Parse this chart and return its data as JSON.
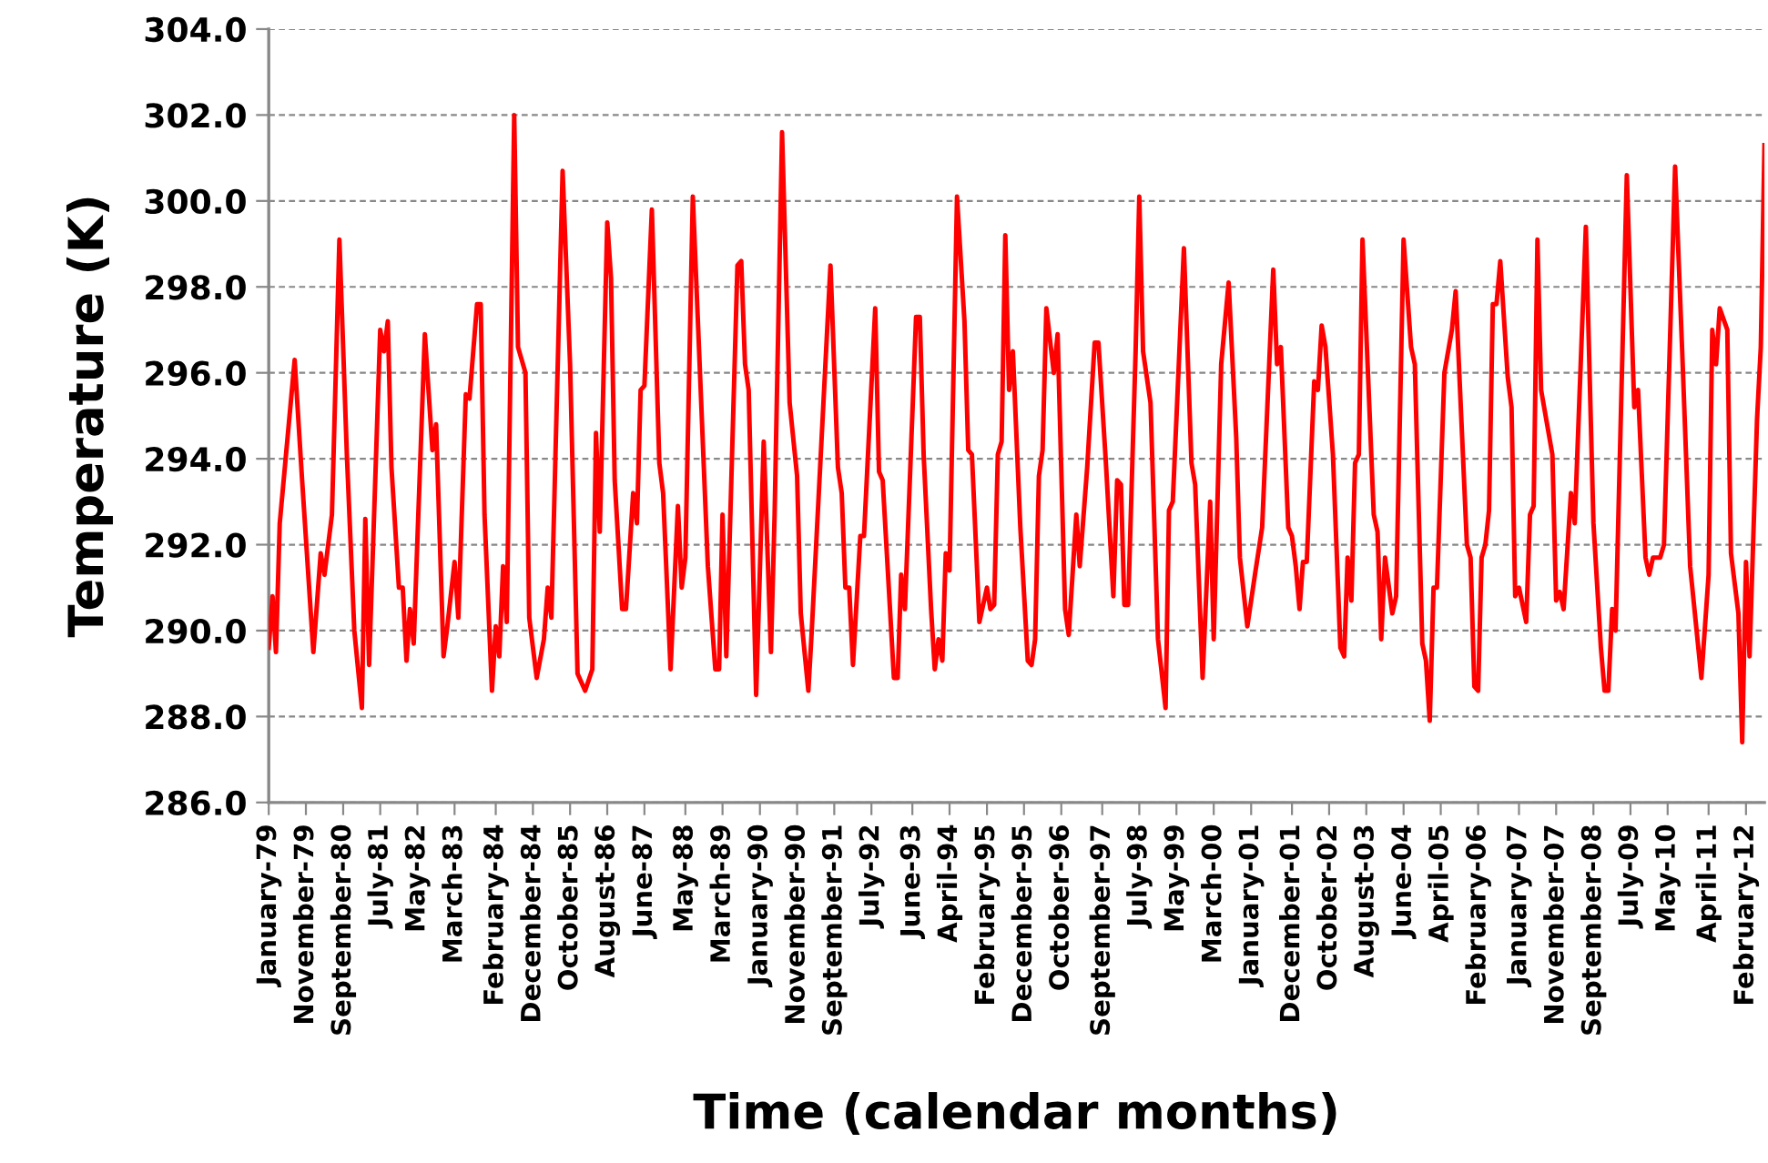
{
  "chart_data": {
    "type": "line",
    "xlabel": "Time (calendar months)",
    "ylabel": "Temperature (K)",
    "x": [
      "1979-01",
      "1979-02",
      "1979-03",
      "1979-04",
      "1979-08",
      "1979-10",
      "1980-01",
      "1980-03",
      "1980-04",
      "1980-06",
      "1980-08",
      "1980-10",
      "1980-12",
      "1981-02",
      "1981-03",
      "1981-04",
      "1981-07",
      "1981-08",
      "1981-09",
      "1981-10",
      "1981-12",
      "1982-01",
      "1982-02",
      "1982-03",
      "1982-04",
      "1982-05",
      "1982-07",
      "1982-09",
      "1982-10",
      "1982-12",
      "1983-01",
      "1983-03",
      "1983-04",
      "1983-06",
      "1983-07",
      "1983-09",
      "1983-10",
      "1983-11",
      "1984-01",
      "1984-02",
      "1984-03",
      "1984-04",
      "1984-05",
      "1984-07",
      "1984-08",
      "1984-10",
      "1984-11",
      "1985-01",
      "1985-03",
      "1985-04",
      "1985-05",
      "1985-08",
      "1985-10",
      "1985-12",
      "1986-02",
      "1986-04",
      "1986-05",
      "1986-06",
      "1986-08",
      "1986-09",
      "1986-10",
      "1986-12",
      "1987-01",
      "1987-03",
      "1987-04",
      "1987-05",
      "1987-06",
      "1987-08",
      "1987-10",
      "1987-11",
      "1988-01",
      "1988-03",
      "1988-04",
      "1988-05",
      "1988-07",
      "1988-11",
      "1989-01",
      "1989-02",
      "1989-03",
      "1989-04",
      "1989-07",
      "1989-08",
      "1989-09",
      "1989-10",
      "1989-11",
      "1989-12",
      "1990-02",
      "1990-04",
      "1990-05",
      "1990-07",
      "1990-09",
      "1990-11",
      "1990-12",
      "1991-02",
      "1991-03",
      "1991-08",
      "1991-10",
      "1991-11",
      "1991-12",
      "1992-01",
      "1992-02",
      "1992-04",
      "1992-05",
      "1992-08",
      "1992-09",
      "1992-10",
      "1993-01",
      "1993-02",
      "1993-03",
      "1993-04",
      "1993-07",
      "1993-08",
      "1993-09",
      "1993-11",
      "1993-12",
      "1994-01",
      "1994-02",
      "1994-03",
      "1994-04",
      "1994-06",
      "1994-08",
      "1994-09",
      "1994-10",
      "1994-12",
      "1995-02",
      "1995-03",
      "1995-04",
      "1995-05",
      "1995-06",
      "1995-07",
      "1995-08",
      "1995-09",
      "1995-11",
      "1996-01",
      "1996-02",
      "1996-03",
      "1996-04",
      "1996-05",
      "1996-06",
      "1996-08",
      "1996-09",
      "1996-11",
      "1996-12",
      "1997-02",
      "1997-03",
      "1997-05",
      "1997-07",
      "1997-08",
      "1997-10",
      "1997-12",
      "1998-01",
      "1998-02",
      "1998-03",
      "1998-04",
      "1998-06",
      "1998-07",
      "1998-08",
      "1998-10",
      "1998-12",
      "1999-02",
      "1999-03",
      "1999-04",
      "1999-07",
      "1999-09",
      "1999-10",
      "1999-12",
      "2000-02",
      "2000-03",
      "2000-05",
      "2000-07",
      "2000-09",
      "2000-10",
      "2000-12",
      "2001-02",
      "2001-04",
      "2001-07",
      "2001-08",
      "2001-09",
      "2001-11",
      "2001-12",
      "2002-01",
      "2002-02",
      "2002-03",
      "2002-04",
      "2002-06",
      "2002-07",
      "2002-08",
      "2002-09",
      "2002-11",
      "2003-01",
      "2003-02",
      "2003-03",
      "2003-04",
      "2003-05",
      "2003-06",
      "2003-07",
      "2003-10",
      "2003-11",
      "2003-12",
      "2004-01",
      "2004-03",
      "2004-04",
      "2004-06",
      "2004-08",
      "2004-09",
      "2004-11",
      "2004-12",
      "2005-01",
      "2005-02",
      "2005-03",
      "2005-05",
      "2005-07",
      "2005-08",
      "2005-11",
      "2005-12",
      "2006-01",
      "2006-02",
      "2006-03",
      "2006-04",
      "2006-05",
      "2006-06",
      "2006-07",
      "2006-08",
      "2006-10",
      "2006-11",
      "2006-12",
      "2007-01",
      "2007-03",
      "2007-04",
      "2007-05",
      "2007-06",
      "2007-07",
      "2007-10",
      "2007-11",
      "2007-12",
      "2008-01",
      "2008-03",
      "2008-04",
      "2008-07",
      "2008-09",
      "2008-11",
      "2008-12",
      "2009-01",
      "2009-02",
      "2009-03",
      "2009-06",
      "2009-08",
      "2009-09",
      "2009-11",
      "2009-12",
      "2010-01",
      "2010-03",
      "2010-04",
      "2010-07",
      "2010-09",
      "2010-11",
      "2011-02",
      "2011-04",
      "2011-05",
      "2011-06",
      "2011-07",
      "2011-09",
      "2011-10",
      "2011-12",
      "2012-01",
      "2012-02",
      "2012-03",
      "2012-05",
      "2012-06",
      "2012-07"
    ],
    "series": [
      {
        "color": "#ff0000",
        "values": [
          289.6,
          290.8,
          289.5,
          292.5,
          296.3,
          293.5,
          289.5,
          291.8,
          291.3,
          292.7,
          299.1,
          294.1,
          290.0,
          288.2,
          292.6,
          289.2,
          297.0,
          296.5,
          297.2,
          293.8,
          291.0,
          291.0,
          289.3,
          290.5,
          289.7,
          292.1,
          296.9,
          294.2,
          294.8,
          289.4,
          290.1,
          291.6,
          290.3,
          295.5,
          295.4,
          297.6,
          297.6,
          292.7,
          288.6,
          290.1,
          289.4,
          291.5,
          290.2,
          302.0,
          296.6,
          296.0,
          290.3,
          288.9,
          289.8,
          291.0,
          290.3,
          300.7,
          296.2,
          289.0,
          288.6,
          289.1,
          294.6,
          292.3,
          299.5,
          298.2,
          293.5,
          290.5,
          290.5,
          293.2,
          292.5,
          295.6,
          295.7,
          299.8,
          293.9,
          293.2,
          289.1,
          292.9,
          291.0,
          291.7,
          300.1,
          291.5,
          289.1,
          289.1,
          292.7,
          289.4,
          298.5,
          298.6,
          296.2,
          295.6,
          292.0,
          288.5,
          294.4,
          289.5,
          292.7,
          301.6,
          295.3,
          293.6,
          290.4,
          288.6,
          290.0,
          298.5,
          293.8,
          293.2,
          291.0,
          291.0,
          289.2,
          292.2,
          292.2,
          297.5,
          293.7,
          293.5,
          288.9,
          288.9,
          291.3,
          290.5,
          297.3,
          297.3,
          294.1,
          290.5,
          289.1,
          289.8,
          289.3,
          291.8,
          291.4,
          300.1,
          297.2,
          294.2,
          294.1,
          290.2,
          291.0,
          290.5,
          290.6,
          294.1,
          294.4,
          299.2,
          295.6,
          296.5,
          292.4,
          289.3,
          289.2,
          289.8,
          293.6,
          294.2,
          297.5,
          296.0,
          296.9,
          290.5,
          289.9,
          292.7,
          291.5,
          293.8,
          296.7,
          296.7,
          293.9,
          290.8,
          293.5,
          293.4,
          290.6,
          290.6,
          296.5,
          300.1,
          296.5,
          295.3,
          289.8,
          288.2,
          292.8,
          293.0,
          298.9,
          293.9,
          293.4,
          288.9,
          293.0,
          289.8,
          296.2,
          298.1,
          294.5,
          291.7,
          290.1,
          291.3,
          292.4,
          298.4,
          296.2,
          296.6,
          292.4,
          292.2,
          291.5,
          290.5,
          291.6,
          291.6,
          295.8,
          295.6,
          297.1,
          296.6,
          294.1,
          289.6,
          289.4,
          291.7,
          290.7,
          293.9,
          294.1,
          299.1,
          292.7,
          292.3,
          289.8,
          291.7,
          290.4,
          290.8,
          299.1,
          296.6,
          296.2,
          289.7,
          289.3,
          287.9,
          291.0,
          291.0,
          296.0,
          297.0,
          297.9,
          292.0,
          291.7,
          288.7,
          288.6,
          291.7,
          292.0,
          292.8,
          297.6,
          297.6,
          298.6,
          295.9,
          295.2,
          290.8,
          291.0,
          290.2,
          292.7,
          292.9,
          299.1,
          295.6,
          294.1,
          290.7,
          290.9,
          290.5,
          293.2,
          292.5,
          299.4,
          292.5,
          289.6,
          288.6,
          288.6,
          290.5,
          290.0,
          300.6,
          295.2,
          295.6,
          291.7,
          291.3,
          291.7,
          291.7,
          292.0,
          300.8,
          296.2,
          291.5,
          288.9,
          291.3,
          297.0,
          296.2,
          297.5,
          297.0,
          291.8,
          290.4,
          287.4,
          291.6,
          289.4,
          294.9,
          296.6,
          301.3
        ]
      }
    ],
    "xlim": [
      "1979-01",
      "2012-07"
    ],
    "xticks": [
      {
        "value": "1979-01",
        "label": "January-79"
      },
      {
        "value": "1979-11",
        "label": "November-79"
      },
      {
        "value": "1980-09",
        "label": "September-80"
      },
      {
        "value": "1981-07",
        "label": "July-81"
      },
      {
        "value": "1982-05",
        "label": "May-82"
      },
      {
        "value": "1983-03",
        "label": "March-83"
      },
      {
        "value": "1984-02",
        "label": "February-84"
      },
      {
        "value": "1984-12",
        "label": "December-84"
      },
      {
        "value": "1985-10",
        "label": "October-85"
      },
      {
        "value": "1986-08",
        "label": "August-86"
      },
      {
        "value": "1987-06",
        "label": "June-87"
      },
      {
        "value": "1988-05",
        "label": "May-88"
      },
      {
        "value": "1989-03",
        "label": "March-89"
      },
      {
        "value": "1990-01",
        "label": "January-90"
      },
      {
        "value": "1990-11",
        "label": "November-90"
      },
      {
        "value": "1991-09",
        "label": "September-91"
      },
      {
        "value": "1992-07",
        "label": "July-92"
      },
      {
        "value": "1993-06",
        "label": "June-93"
      },
      {
        "value": "1994-04",
        "label": "April-94"
      },
      {
        "value": "1995-02",
        "label": "February-95"
      },
      {
        "value": "1995-12",
        "label": "December-95"
      },
      {
        "value": "1996-10",
        "label": "October-96"
      },
      {
        "value": "1997-09",
        "label": "September-97"
      },
      {
        "value": "1998-07",
        "label": "July-98"
      },
      {
        "value": "1999-05",
        "label": "May-99"
      },
      {
        "value": "2000-03",
        "label": "March-00"
      },
      {
        "value": "2001-01",
        "label": "January-01"
      },
      {
        "value": "2001-12",
        "label": "December-01"
      },
      {
        "value": "2002-10",
        "label": "October-02"
      },
      {
        "value": "2003-08",
        "label": "August-03"
      },
      {
        "value": "2004-06",
        "label": "June-04"
      },
      {
        "value": "2005-04",
        "label": "April-05"
      },
      {
        "value": "2006-02",
        "label": "February-06"
      },
      {
        "value": "2007-01",
        "label": "January-07"
      },
      {
        "value": "2007-11",
        "label": "November-07"
      },
      {
        "value": "2008-09",
        "label": "September-08"
      },
      {
        "value": "2009-07",
        "label": "July-09"
      },
      {
        "value": "2010-05",
        "label": "May-10"
      },
      {
        "value": "2011-04",
        "label": "April-11"
      },
      {
        "value": "2012-02",
        "label": "February-12"
      }
    ],
    "ylim": [
      286,
      304
    ],
    "yticks": [
      {
        "value": 286,
        "label": "286.0"
      },
      {
        "value": 288,
        "label": "288.0"
      },
      {
        "value": 290,
        "label": "290.0"
      },
      {
        "value": 292,
        "label": "292.0"
      },
      {
        "value": 294,
        "label": "294.0"
      },
      {
        "value": 296,
        "label": "296.0"
      },
      {
        "value": 298,
        "label": "298.0"
      },
      {
        "value": 300,
        "label": "300.0"
      },
      {
        "value": 302,
        "label": "302.0"
      },
      {
        "value": 304,
        "label": "304.0"
      }
    ],
    "grid": "y",
    "marker": "none",
    "line_style": "solid"
  }
}
